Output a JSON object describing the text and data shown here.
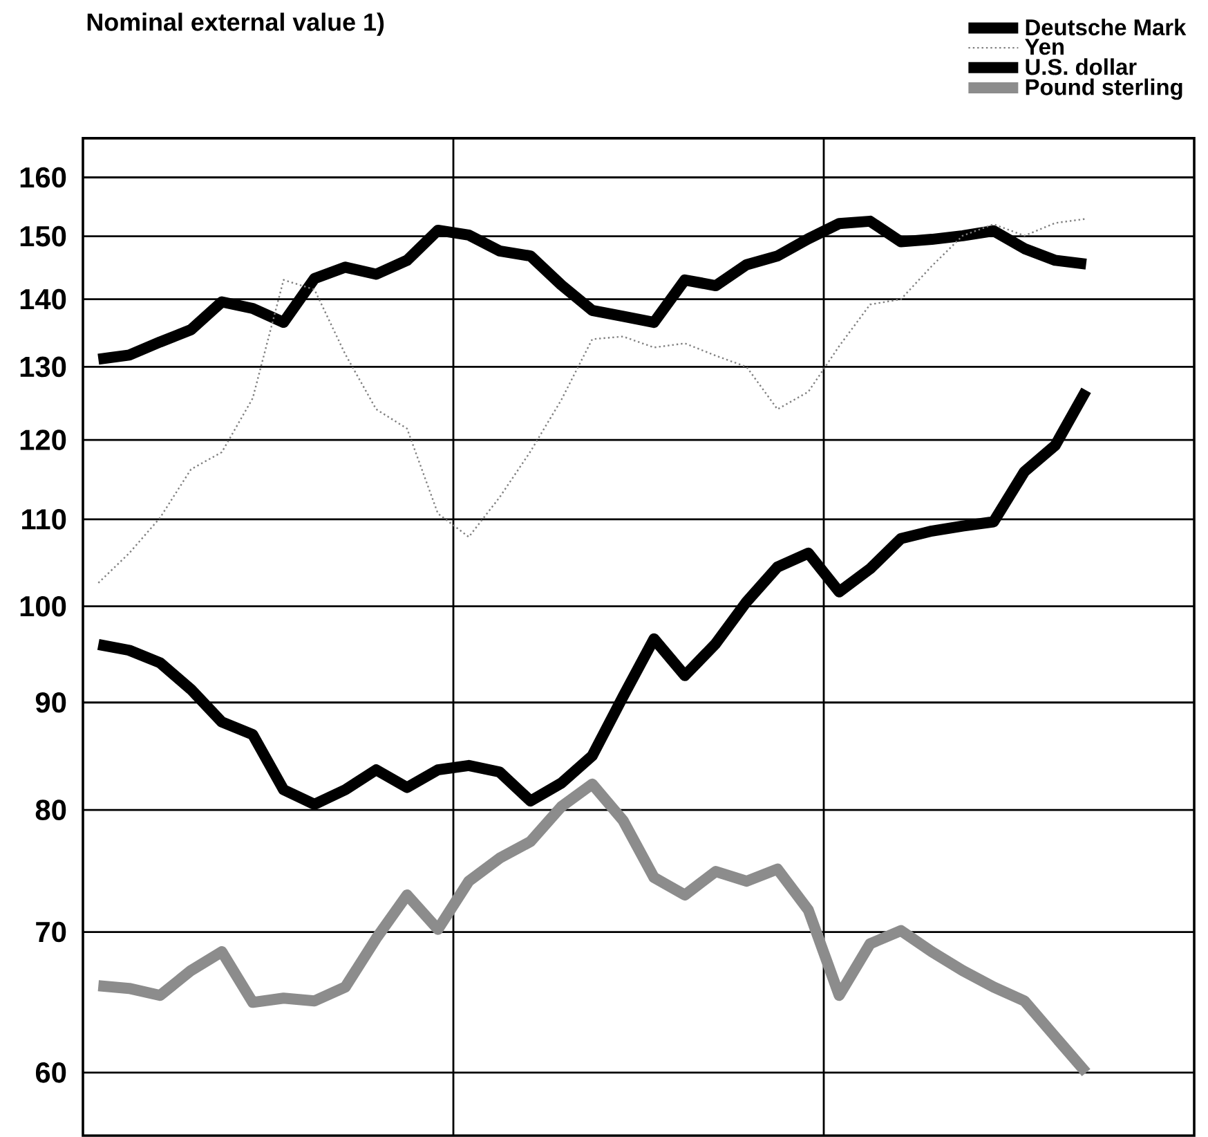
{
  "chart_data": {
    "type": "line",
    "title": "Nominal external value 1)",
    "categories": [
      null,
      null,
      null,
      null,
      null,
      null,
      null,
      null,
      null,
      null,
      null,
      null,
      null,
      null,
      null,
      null,
      null,
      null,
      null,
      null,
      null,
      null,
      null,
      null,
      null,
      null,
      null,
      null,
      null,
      null,
      null,
      null,
      null,
      null,
      null,
      null
    ],
    "ylim": [
      56,
      167
    ],
    "yticks": [
      60,
      70,
      80,
      90,
      100,
      110,
      120,
      130,
      140,
      150,
      160
    ],
    "log": true,
    "grid": "y",
    "legend": "top right",
    "series": [
      {
        "name": "Deutsche Mark",
        "color": "#000000",
        "line_style": "solid",
        "values": [
          131.1,
          131.7,
          133.6,
          135.4,
          139.6,
          138.6,
          136.5,
          143.2,
          145.0,
          143.9,
          146.1,
          151.0,
          150.2,
          147.6,
          146.8,
          142.2,
          138.3,
          137.4,
          136.5,
          143.0,
          142.1,
          145.4,
          146.8,
          149.6,
          152.1,
          152.5,
          149.1,
          149.5,
          150.1,
          150.9,
          148.0,
          146.1,
          145.5,
          null,
          null,
          null
        ]
      },
      {
        "name": "Yen",
        "color": "#808080",
        "line_style": "dotted",
        "values": [
          102.6,
          106.0,
          110.2,
          116.2,
          118.4,
          125.6,
          143.0,
          141.5,
          131.8,
          124.1,
          121.5,
          110.7,
          107.9,
          112.7,
          118.5,
          125.4,
          134.0,
          134.4,
          132.8,
          133.4,
          131.6,
          130.0,
          124.1,
          126.5,
          133.0,
          139.2,
          140.0,
          145.2,
          150.1,
          152.0,
          150.1,
          152.2,
          152.9,
          null,
          null,
          null
        ]
      },
      {
        "name": "U.S. dollar",
        "color": "#000000",
        "line_style": "solid",
        "values": [
          95.9,
          95.3,
          94.0,
          91.3,
          88.1,
          86.9,
          81.8,
          80.5,
          81.8,
          83.6,
          82.0,
          83.6,
          84.0,
          83.4,
          80.8,
          82.4,
          84.9,
          90.6,
          96.5,
          92.7,
          96.0,
          100.5,
          104.4,
          106.0,
          101.6,
          104.2,
          107.7,
          108.6,
          109.2,
          109.7,
          115.9,
          119.3,
          126.7,
          null,
          null,
          null
        ]
      },
      {
        "name": "Pound sterling",
        "color": "#8c8c8c",
        "line_style": "solid",
        "values": [
          66.0,
          65.8,
          65.3,
          67.1,
          68.5,
          64.8,
          65.1,
          64.9,
          65.9,
          69.5,
          72.9,
          70.2,
          74.0,
          75.9,
          77.3,
          80.3,
          82.3,
          79.1,
          74.3,
          72.9,
          74.8,
          74.0,
          75.0,
          71.7,
          65.3,
          69.1,
          70.1,
          68.5,
          67.1,
          65.9,
          64.9,
          62.4,
          60.0,
          null,
          null,
          null
        ]
      }
    ]
  }
}
